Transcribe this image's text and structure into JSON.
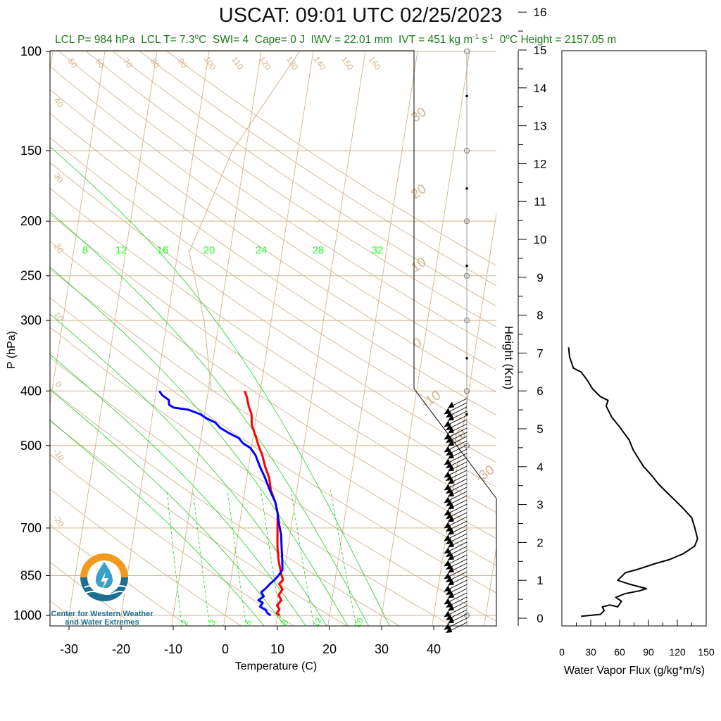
{
  "title": "USCAT: 09:01 UTC 02/25/2023",
  "subtitle": {
    "lcl_p": "LCL P= 984 hPa",
    "lcl_t_pre": "LCL T= 7.3",
    "lcl_t_sup": "o",
    "lcl_t_post": "C",
    "swi": "SWI= 4",
    "cape": "Cape= 0 J",
    "iwv": "IWV = 22.01 mm",
    "ivt_pre": "IVT = 451 kg m",
    "ivt_sup1": "-1",
    "ivt_mid": " s",
    "ivt_sup2": "-1",
    "zero_pre": "0",
    "zero_sup": "o",
    "zero_post": "C Height = 2157.05 m"
  },
  "logo": {
    "line1": "Center for Western Weather",
    "line2": "and Water Extremes",
    "icon": "water-drop-sun-logo"
  },
  "colors": {
    "temperature": "#ff0000",
    "dewpoint": "#0000ff",
    "dry_adiabat": "#d2b48c",
    "moist_adiabat": "#22cc22",
    "mixing_ratio_label": "#22ff22",
    "isotherm": "#d2b48c",
    "flux": "#000000"
  },
  "chart_data": [
    {
      "type": "line",
      "name": "skew-t",
      "xlabel": "Temperature (C)",
      "ylabel": "P (hPa)",
      "x_ticks": [
        -30,
        -20,
        -10,
        0,
        10,
        20,
        30,
        40
      ],
      "y_ticks": [
        100,
        150,
        200,
        250,
        300,
        400,
        500,
        700,
        850,
        1000
      ],
      "ylim": [
        1000,
        100
      ],
      "log_y": true,
      "isotherm_labels_right": [
        "30",
        "20",
        "10",
        "0",
        "-10",
        "-20",
        "-30"
      ],
      "dry_adiabat_labels_top": [
        "50",
        "60",
        "70",
        "80",
        "90",
        "100",
        "110",
        "120",
        "130",
        "140",
        "150",
        "160"
      ],
      "dry_adiabat_labels_left": [
        "40",
        "30",
        "20",
        "10",
        "0",
        "-10",
        "-20"
      ],
      "mixing_ratio_labels_top": [
        "8",
        "12",
        "16",
        "20",
        "24",
        "28",
        "32"
      ],
      "mixing_ratio_labels_bottom": [
        "2",
        "3",
        "5",
        "8",
        "12",
        "20"
      ],
      "series": [
        {
          "label": "temperature",
          "points": [
            [
              1000,
              10.4
            ],
            [
              990,
              9.8
            ],
            [
              975,
              10.2
            ],
            [
              960,
              9.6
            ],
            [
              940,
              10.3
            ],
            [
              920,
              9.6
            ],
            [
              900,
              10.2
            ],
            [
              880,
              9.4
            ],
            [
              865,
              10.0
            ],
            [
              850,
              9.6
            ],
            [
              830,
              9.2
            ],
            [
              800,
              8.6
            ],
            [
              760,
              8.0
            ],
            [
              720,
              7.6
            ],
            [
              690,
              7.3
            ],
            [
              660,
              7.0
            ],
            [
              630,
              6.2
            ],
            [
              600,
              5.0
            ],
            [
              570,
              4.3
            ],
            [
              545,
              3.2
            ],
            [
              520,
              2.3
            ],
            [
              500,
              1.3
            ],
            [
              480,
              0.4
            ],
            [
              460,
              -0.6
            ],
            [
              440,
              -1.0
            ],
            [
              425,
              -1.8
            ],
            [
              410,
              -2.4
            ],
            [
              400,
              -3.0
            ]
          ]
        },
        {
          "label": "dewpoint",
          "points": [
            [
              1000,
              8.7
            ],
            [
              990,
              8.0
            ],
            [
              978,
              7.6
            ],
            [
              965,
              6.4
            ],
            [
              950,
              6.8
            ],
            [
              940,
              5.9
            ],
            [
              925,
              6.8
            ],
            [
              910,
              6.2
            ],
            [
              895,
              7.0
            ],
            [
              880,
              7.6
            ],
            [
              865,
              8.4
            ],
            [
              850,
              9.0
            ],
            [
              830,
              9.6
            ],
            [
              800,
              9.3
            ],
            [
              760,
              8.8
            ],
            [
              720,
              8.3
            ],
            [
              690,
              7.6
            ],
            [
              660,
              7.0
            ],
            [
              630,
              6.2
            ],
            [
              600,
              4.8
            ],
            [
              570,
              3.5
            ],
            [
              545,
              2.2
            ],
            [
              520,
              1.0
            ],
            [
              505,
              -0.2
            ],
            [
              495,
              -1.8
            ],
            [
              485,
              -2.7
            ],
            [
              475,
              -4.8
            ],
            [
              465,
              -6.6
            ],
            [
              455,
              -7.7
            ],
            [
              447,
              -9.6
            ],
            [
              440,
              -10.8
            ],
            [
              432,
              -13.2
            ],
            [
              428,
              -16.2
            ],
            [
              423,
              -17.1
            ],
            [
              415,
              -17.3
            ],
            [
              407,
              -18.7
            ],
            [
              400,
              -19.4
            ]
          ]
        }
      ]
    },
    {
      "type": "line",
      "name": "water-vapor-flux",
      "xlabel": "Water Vapor Flux (g/kg*m/s)",
      "ylabel": "Height (Km)",
      "x_ticks": [
        0,
        30,
        60,
        90,
        120,
        150
      ],
      "y_ticks": [
        0,
        1,
        2,
        3,
        4,
        5,
        6,
        7,
        8,
        9,
        10,
        11,
        12,
        13,
        14,
        15,
        16
      ],
      "xlim": [
        0,
        150
      ],
      "ylim": [
        -0.2,
        16.3
      ],
      "points": [
        [
          20,
          0.05
        ],
        [
          40,
          0.1
        ],
        [
          44,
          0.2
        ],
        [
          42,
          0.3
        ],
        [
          50,
          0.35
        ],
        [
          58,
          0.3
        ],
        [
          62,
          0.45
        ],
        [
          56,
          0.55
        ],
        [
          66,
          0.65
        ],
        [
          80,
          0.72
        ],
        [
          88,
          0.78
        ],
        [
          70,
          0.9
        ],
        [
          58,
          1.0
        ],
        [
          66,
          1.2
        ],
        [
          80,
          1.3
        ],
        [
          98,
          1.45
        ],
        [
          112,
          1.55
        ],
        [
          126,
          1.7
        ],
        [
          138,
          1.9
        ],
        [
          141,
          2.1
        ],
        [
          138,
          2.4
        ],
        [
          135,
          2.65
        ],
        [
          126,
          2.9
        ],
        [
          118,
          3.1
        ],
        [
          110,
          3.3
        ],
        [
          100,
          3.55
        ],
        [
          94,
          3.75
        ],
        [
          85,
          4.0
        ],
        [
          80,
          4.2
        ],
        [
          74,
          4.45
        ],
        [
          70,
          4.7
        ],
        [
          60,
          5.05
        ],
        [
          52,
          5.3
        ],
        [
          46,
          5.6
        ],
        [
          48,
          5.75
        ],
        [
          40,
          5.85
        ],
        [
          32,
          6.05
        ],
        [
          26,
          6.3
        ],
        [
          20,
          6.5
        ],
        [
          12,
          6.6
        ],
        [
          10,
          6.75
        ],
        [
          8,
          6.9
        ],
        [
          7,
          7.15
        ]
      ]
    }
  ]
}
